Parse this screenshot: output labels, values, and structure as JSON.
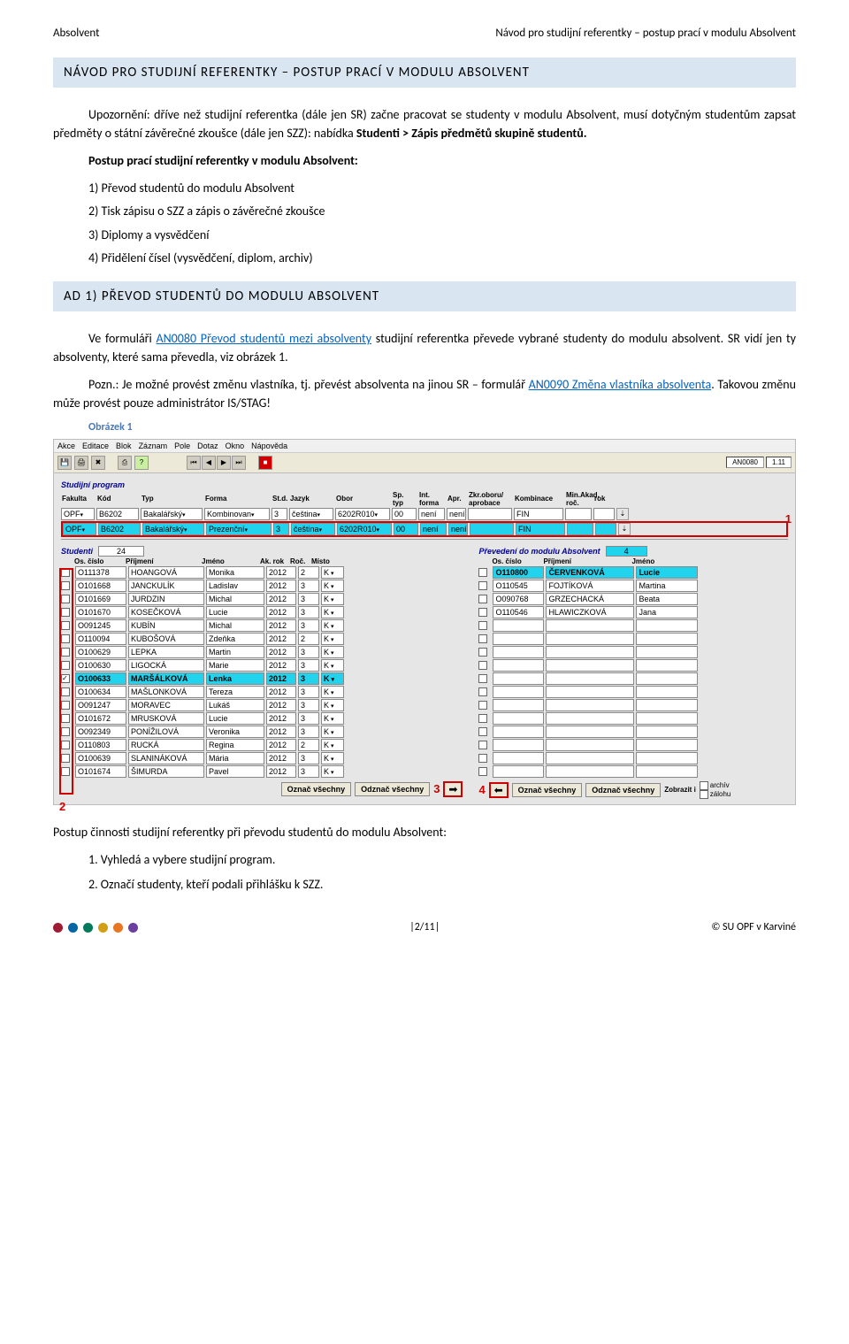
{
  "header": {
    "left": "Absolvent",
    "right": "Návod pro studijní referentky – postup prací v modulu Absolvent"
  },
  "title1": "NÁVOD PRO STUDIJNÍ REFERENTKY – POSTUP PRACÍ V MODULU ABSOLVENT",
  "p1a": "Upozornění: dříve než studijní referentka (dále jen SR) začne pracovat se studenty v modulu Absolvent, musí dotyčným studentům zapsat předměty o státní závěrečné zkoušce (dále jen SZZ): nabídka ",
  "p1b": "Studenti > Zápis předmětů skupině studentů.",
  "p2": "Postup prací studijní referentky v modulu Absolvent:",
  "li1": "1) Převod studentů do modulu Absolvent",
  "li2": "2) Tisk zápisu o SZZ a zápis o závěrečné zkoušce",
  "li3": "3) Diplomy a vysvědčení",
  "li4": "4) Přidělení čísel (vysvědčení, diplom, archiv)",
  "title2": "AD 1) PŘEVOD STUDENTŮ DO MODULU ABSOLVENT",
  "p3a": "Ve formuláři ",
  "p3link": "AN0080 Převod studentů mezi absolventy",
  "p3b": " studijní referentka převede vybrané studenty do modulu absolvent. SR vidí jen ty absolventy, které sama převedla, viz obrázek 1.",
  "p4a": "Pozn.: Je možné provést změnu vlastníka, tj. převést absolventa na jinou SR – formulář ",
  "p4link": "AN0090 Změna vlastníka absolventa",
  "p4b": ". Takovou změnu může provést pouze administrátor IS/STAG!",
  "caption": "Obrázek 1",
  "p5": "Postup činnosti studijní referentky při převodu studentů do modulu Absolvent:",
  "n1": "1.   Vyhledá a vybere studijní program.",
  "n2": "2.   Označí studenty, kteří podali přihlášku k SZZ.",
  "footer": {
    "page": "|2/11|",
    "copy": "© SU OPF v Karviné"
  },
  "dots": [
    "#9e1b32",
    "#0066a4",
    "#007a5a",
    "#d29f13",
    "#e87722",
    "#6b3fa0"
  ],
  "ss": {
    "menubar": [
      "Akce",
      "Editace",
      "Blok",
      "Záznam",
      "Pole",
      "Dotaz",
      "Okno",
      "Nápověda"
    ],
    "status_code": "AN0080",
    "status_ver": "1.11",
    "sect_program": "Studijní program",
    "prog_headers": [
      "Fakulta",
      "Kód",
      "Typ",
      "Forma",
      "St.d.",
      "Jazyk",
      "Obor",
      "Sp. typ",
      "Int. forma",
      "Apr.",
      "Zkr.oboru/ aprobace",
      "Kombinace",
      "Min.Akad. roč.",
      "rok"
    ],
    "prog_r1": {
      "fak": "OPF",
      "kod": "B6202",
      "typ": "Bakalářský",
      "forma": "Kombinovan",
      "std": "3",
      "jaz": "čeština",
      "obor": "6202R010",
      "sptyp": "00",
      "intf": "není",
      "apr": "není",
      "zkr": "",
      "komb": "FIN",
      "roc": "",
      "rok": ""
    },
    "prog_r2": {
      "fak": "OPF",
      "kod": "B6202",
      "typ": "Bakalářský",
      "forma": "Prezenční",
      "std": "3",
      "jaz": "čeština",
      "obor": "6202R010",
      "sptyp": "00",
      "intf": "není",
      "apr": "není",
      "zkr": "",
      "komb": "FIN",
      "roc": "",
      "rok": ""
    },
    "sect_students": "Studenti",
    "students_count": "24",
    "sect_prevedeni": "Převedení do modulu Absolvent",
    "prevedeni_count": "4",
    "stu_headers": [
      "Os. číslo",
      "Příjmení",
      "Jméno",
      "Ak. rok",
      "Roč.",
      "Místo"
    ],
    "students": [
      {
        "os": "O111378",
        "pr": "HOANGOVÁ",
        "jm": "Monika",
        "rok": "2012",
        "roc": "2",
        "m": "K",
        "chk": false
      },
      {
        "os": "O101668",
        "pr": "JANCKULÍK",
        "jm": "Ladislav",
        "rok": "2012",
        "roc": "3",
        "m": "K",
        "chk": false
      },
      {
        "os": "O101669",
        "pr": "JURDZIN",
        "jm": "Michal",
        "rok": "2012",
        "roc": "3",
        "m": "K",
        "chk": false
      },
      {
        "os": "O101670",
        "pr": "KOSEČKOVÁ",
        "jm": "Lucie",
        "rok": "2012",
        "roc": "3",
        "m": "K",
        "chk": false
      },
      {
        "os": "O091245",
        "pr": "KUBÍN",
        "jm": "Michal",
        "rok": "2012",
        "roc": "3",
        "m": "K",
        "chk": false
      },
      {
        "os": "O110094",
        "pr": "KUBOŠOVÁ",
        "jm": "Zdeňka",
        "rok": "2012",
        "roc": "2",
        "m": "K",
        "chk": false
      },
      {
        "os": "O100629",
        "pr": "LEPKA",
        "jm": "Martin",
        "rok": "2012",
        "roc": "3",
        "m": "K",
        "chk": false
      },
      {
        "os": "O100630",
        "pr": "LIGOCKÁ",
        "jm": "Marie",
        "rok": "2012",
        "roc": "3",
        "m": "K",
        "chk": false
      },
      {
        "os": "O100633",
        "pr": "MARŠÁLKOVÁ",
        "jm": "Lenka",
        "rok": "2012",
        "roc": "3",
        "m": "K",
        "chk": true,
        "hl": true
      },
      {
        "os": "O100634",
        "pr": "MAŠLONKOVÁ",
        "jm": "Tereza",
        "rok": "2012",
        "roc": "3",
        "m": "K",
        "chk": false
      },
      {
        "os": "O091247",
        "pr": "MORAVEC",
        "jm": "Lukáš",
        "rok": "2012",
        "roc": "3",
        "m": "K",
        "chk": false
      },
      {
        "os": "O101672",
        "pr": "MRUSKOVÁ",
        "jm": "Lucie",
        "rok": "2012",
        "roc": "3",
        "m": "K",
        "chk": false
      },
      {
        "os": "O092349",
        "pr": "PONÍŽILOVÁ",
        "jm": "Veronika",
        "rok": "2012",
        "roc": "3",
        "m": "K",
        "chk": false
      },
      {
        "os": "O110803",
        "pr": "RUCKÁ",
        "jm": "Regina",
        "rok": "2012",
        "roc": "2",
        "m": "K",
        "chk": false
      },
      {
        "os": "O100639",
        "pr": "SLANINÁKOVÁ",
        "jm": "Mária",
        "rok": "2012",
        "roc": "3",
        "m": "K",
        "chk": false
      },
      {
        "os": "O101674",
        "pr": "ŠIMURDA",
        "jm": "Pavel",
        "rok": "2012",
        "roc": "3",
        "m": "K",
        "chk": false
      }
    ],
    "prev_headers": [
      "Os. číslo",
      "Příjmení",
      "Jméno"
    ],
    "prevedeni": [
      {
        "os": "O110800",
        "pr": "ČERVENKOVÁ",
        "jm": "Lucie",
        "hl": true
      },
      {
        "os": "O110545",
        "pr": "FOJTÍKOVÁ",
        "jm": "Martina"
      },
      {
        "os": "O090768",
        "pr": "GRZECHACKÁ",
        "jm": "Beata"
      },
      {
        "os": "O110546",
        "pr": "HLAWICZKOVÁ",
        "jm": "Jana"
      }
    ],
    "btns": {
      "oznac": "Označ všechny",
      "odznac": "Odznač všechny",
      "zobrazit": "Zobrazit i",
      "archiv": "archív",
      "zalohu": "zálohu"
    },
    "markers": {
      "m1": "1",
      "m2": "2",
      "m3": "3",
      "m4": "4"
    }
  }
}
